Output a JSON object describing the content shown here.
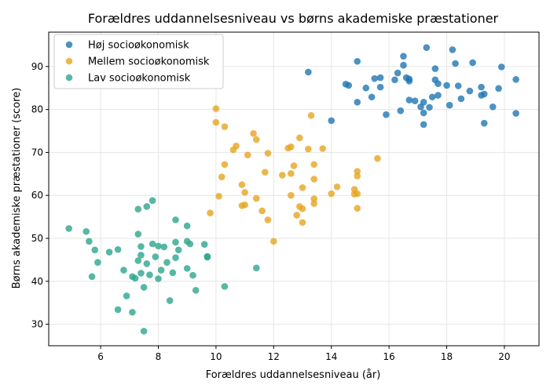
{
  "chart_data": {
    "type": "scatter",
    "title": "Forældres uddannelsesniveau vs børns akademiske præstationer",
    "xlabel": "Forældres uddannelsesniveau (år)",
    "ylabel": "Børns akademiske præstationer (score)",
    "xlim": [
      4.2,
      21.2
    ],
    "ylim": [
      25,
      98
    ],
    "xticks": [
      6,
      8,
      10,
      12,
      14,
      16,
      18,
      20
    ],
    "yticks": [
      30,
      40,
      50,
      60,
      70,
      80,
      90
    ],
    "grid": true,
    "legend_position": "top-left",
    "series": [
      {
        "name": "Høj socioøkonomisk",
        "color": "#1f77b4",
        "points": [
          [
            13.2,
            88.7
          ],
          [
            14.0,
            77.4
          ],
          [
            14.5,
            85.9
          ],
          [
            14.6,
            85.6
          ],
          [
            14.9,
            81.7
          ],
          [
            14.9,
            91.2
          ],
          [
            15.2,
            85.0
          ],
          [
            15.4,
            82.9
          ],
          [
            15.5,
            87.2
          ],
          [
            15.7,
            87.4
          ],
          [
            15.7,
            85.2
          ],
          [
            15.9,
            78.8
          ],
          [
            16.2,
            86.9
          ],
          [
            16.3,
            88.5
          ],
          [
            16.4,
            79.7
          ],
          [
            16.5,
            92.4
          ],
          [
            16.5,
            90.3
          ],
          [
            16.6,
            87.4
          ],
          [
            16.7,
            87.1
          ],
          [
            16.7,
            86.6
          ],
          [
            16.7,
            82.2
          ],
          [
            16.9,
            82.0
          ],
          [
            17.1,
            80.6
          ],
          [
            17.2,
            76.5
          ],
          [
            17.2,
            81.7
          ],
          [
            17.2,
            79.2
          ],
          [
            17.3,
            94.4
          ],
          [
            17.4,
            80.5
          ],
          [
            17.5,
            82.9
          ],
          [
            17.6,
            89.5
          ],
          [
            17.6,
            86.9
          ],
          [
            17.7,
            83.3
          ],
          [
            17.7,
            86.0
          ],
          [
            18.0,
            85.6
          ],
          [
            18.1,
            81.0
          ],
          [
            18.2,
            93.9
          ],
          [
            18.3,
            90.7
          ],
          [
            18.4,
            85.5
          ],
          [
            18.5,
            82.5
          ],
          [
            18.8,
            84.3
          ],
          [
            18.9,
            90.9
          ],
          [
            19.2,
            85.2
          ],
          [
            19.2,
            83.3
          ],
          [
            19.3,
            76.8
          ],
          [
            19.3,
            83.6
          ],
          [
            19.6,
            80.6
          ],
          [
            19.8,
            84.9
          ],
          [
            19.9,
            89.9
          ],
          [
            20.4,
            79.1
          ],
          [
            20.4,
            87.0
          ]
        ]
      },
      {
        "name": "Mellem socioøkonomisk",
        "color": "#e6a520",
        "points": [
          [
            9.8,
            55.9
          ],
          [
            10.0,
            77.0
          ],
          [
            10.0,
            80.2
          ],
          [
            10.1,
            59.8
          ],
          [
            10.2,
            64.3
          ],
          [
            10.3,
            76.0
          ],
          [
            10.3,
            67.2
          ],
          [
            10.6,
            70.6
          ],
          [
            10.7,
            71.5
          ],
          [
            10.9,
            57.6
          ],
          [
            10.9,
            62.5
          ],
          [
            11.0,
            57.8
          ],
          [
            11.0,
            60.7
          ],
          [
            11.1,
            69.4
          ],
          [
            11.3,
            74.4
          ],
          [
            11.4,
            73.0
          ],
          [
            11.4,
            59.3
          ],
          [
            11.6,
            56.4
          ],
          [
            11.7,
            65.4
          ],
          [
            11.8,
            69.8
          ],
          [
            11.8,
            54.3
          ],
          [
            12.0,
            49.3
          ],
          [
            12.3,
            64.7
          ],
          [
            12.5,
            71.0
          ],
          [
            12.6,
            60.0
          ],
          [
            12.6,
            71.3
          ],
          [
            12.6,
            65.1
          ],
          [
            12.7,
            66.9
          ],
          [
            12.8,
            55.4
          ],
          [
            12.9,
            57.4
          ],
          [
            12.9,
            73.4
          ],
          [
            13.0,
            56.9
          ],
          [
            13.0,
            61.8
          ],
          [
            13.0,
            53.7
          ],
          [
            13.2,
            70.8
          ],
          [
            13.3,
            78.6
          ],
          [
            13.4,
            67.2
          ],
          [
            13.4,
            63.8
          ],
          [
            13.4,
            58.1
          ],
          [
            13.4,
            59.2
          ],
          [
            13.7,
            70.9
          ],
          [
            14.0,
            60.4
          ],
          [
            14.2,
            62.0
          ],
          [
            14.8,
            60.3
          ],
          [
            14.8,
            61.4
          ],
          [
            14.9,
            64.5
          ],
          [
            14.9,
            65.6
          ],
          [
            14.9,
            60.4
          ],
          [
            14.9,
            57.0
          ],
          [
            15.6,
            68.6
          ]
        ]
      },
      {
        "name": "Lav socioøkonomisk",
        "color": "#2ca58d",
        "points": [
          [
            4.9,
            52.3
          ],
          [
            5.5,
            51.6
          ],
          [
            5.6,
            49.3
          ],
          [
            5.7,
            41.1
          ],
          [
            5.8,
            47.3
          ],
          [
            5.9,
            44.4
          ],
          [
            6.3,
            46.8
          ],
          [
            6.6,
            47.4
          ],
          [
            6.6,
            33.4
          ],
          [
            6.8,
            42.6
          ],
          [
            6.9,
            36.6
          ],
          [
            7.1,
            32.8
          ],
          [
            7.1,
            41.1
          ],
          [
            7.2,
            40.7
          ],
          [
            7.3,
            56.8
          ],
          [
            7.3,
            51.0
          ],
          [
            7.3,
            44.8
          ],
          [
            7.4,
            41.9
          ],
          [
            7.4,
            46.1
          ],
          [
            7.4,
            48.1
          ],
          [
            7.5,
            28.4
          ],
          [
            7.5,
            38.6
          ],
          [
            7.6,
            44.1
          ],
          [
            7.6,
            57.4
          ],
          [
            7.7,
            41.5
          ],
          [
            7.8,
            58.8
          ],
          [
            7.8,
            48.7
          ],
          [
            7.9,
            45.7
          ],
          [
            8.0,
            48.2
          ],
          [
            8.0,
            40.6
          ],
          [
            8.1,
            42.6
          ],
          [
            8.2,
            48.0
          ],
          [
            8.3,
            44.4
          ],
          [
            8.4,
            35.5
          ],
          [
            8.5,
            42.0
          ],
          [
            8.6,
            45.5
          ],
          [
            8.6,
            54.3
          ],
          [
            8.6,
            49.1
          ],
          [
            8.7,
            47.3
          ],
          [
            9.0,
            49.3
          ],
          [
            9.0,
            43.0
          ],
          [
            9.0,
            52.9
          ],
          [
            9.1,
            48.7
          ],
          [
            9.2,
            41.4
          ],
          [
            9.3,
            37.9
          ],
          [
            9.6,
            48.6
          ],
          [
            9.7,
            45.8
          ],
          [
            9.7,
            45.6
          ],
          [
            10.3,
            38.8
          ],
          [
            11.4,
            43.1
          ]
        ]
      }
    ]
  }
}
